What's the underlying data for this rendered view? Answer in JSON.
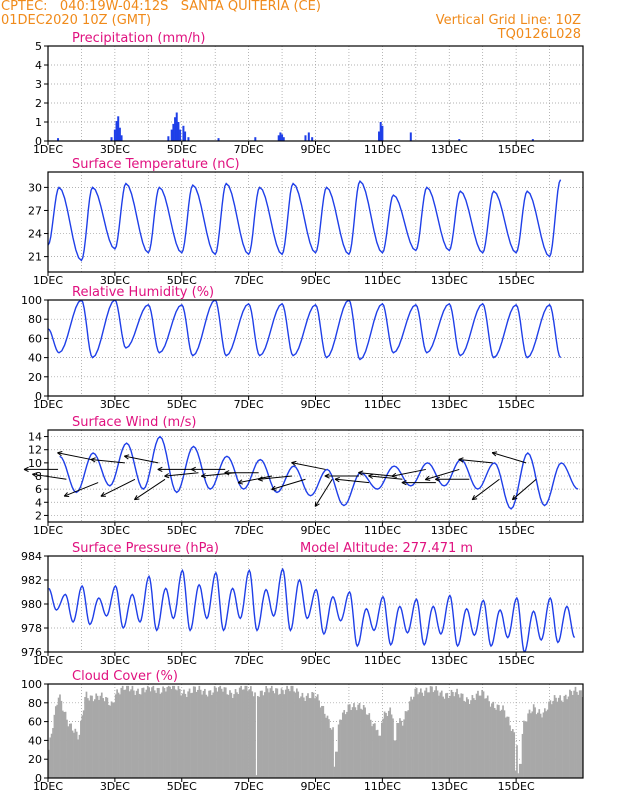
{
  "header": {
    "line1": "CPTEC:   040:19W-04:12S   SANTA QUITERIA (CE)",
    "line2": "01DEC2020 10Z (GMT)",
    "grid_note": "Vertical Grid Line: 10Z",
    "code": "TQ0126L028"
  },
  "colors": {
    "header": "#f08a1a",
    "panel_title": "#e0117f",
    "series": "#1f3fe8",
    "cloud": "#a8a8a8",
    "wind_arrow": "#000000"
  },
  "x_ticks": [
    "1DEC",
    "3DEC",
    "5DEC",
    "7DEC",
    "9DEC",
    "11DEC",
    "13DEC",
    "15DEC"
  ],
  "chart_data": [
    {
      "type": "bar",
      "title": "Precipitation (mm/h)",
      "ylim": [
        0,
        5
      ],
      "yticks": [
        "0",
        "1",
        "2",
        "3",
        "4",
        "5"
      ],
      "points": [
        {
          "x": 0.3,
          "y": 0.15
        },
        {
          "x": 1.9,
          "y": 0.2
        },
        {
          "x": 2.0,
          "y": 0.6
        },
        {
          "x": 2.05,
          "y": 1.05
        },
        {
          "x": 2.1,
          "y": 1.3
        },
        {
          "x": 2.15,
          "y": 0.7
        },
        {
          "x": 2.2,
          "y": 0.3
        },
        {
          "x": 3.6,
          "y": 0.25
        },
        {
          "x": 3.7,
          "y": 0.6
        },
        {
          "x": 3.75,
          "y": 0.9
        },
        {
          "x": 3.8,
          "y": 1.25
        },
        {
          "x": 3.85,
          "y": 1.5
        },
        {
          "x": 3.9,
          "y": 1.0
        },
        {
          "x": 3.95,
          "y": 0.6
        },
        {
          "x": 4.05,
          "y": 0.8
        },
        {
          "x": 4.1,
          "y": 0.5
        },
        {
          "x": 4.2,
          "y": 0.2
        },
        {
          "x": 5.1,
          "y": 0.15
        },
        {
          "x": 6.2,
          "y": 0.2
        },
        {
          "x": 6.9,
          "y": 0.3
        },
        {
          "x": 6.95,
          "y": 0.45
        },
        {
          "x": 7.0,
          "y": 0.35
        },
        {
          "x": 7.05,
          "y": 0.2
        },
        {
          "x": 7.7,
          "y": 0.3
        },
        {
          "x": 7.8,
          "y": 0.45
        },
        {
          "x": 7.9,
          "y": 0.2
        },
        {
          "x": 9.9,
          "y": 0.5
        },
        {
          "x": 9.95,
          "y": 1.0
        },
        {
          "x": 10.0,
          "y": 0.8
        },
        {
          "x": 10.85,
          "y": 0.45
        },
        {
          "x": 12.3,
          "y": 0.1
        },
        {
          "x": 14.5,
          "y": 0.1
        }
      ]
    },
    {
      "type": "line",
      "title": "Surface Temperature (nC)",
      "ylim": [
        19,
        32
      ],
      "yticks": [
        "21",
        "24",
        "27",
        "30"
      ],
      "cycle": {
        "min_offset": 0.0,
        "max_offset": 0.33,
        "period": 1,
        "minima": [
          22.5,
          20.5,
          22.0,
          21.5,
          21.5,
          21.3,
          21.3,
          21.3,
          21.5,
          21.3,
          21.5,
          21.8,
          21.8,
          21.5,
          21.5,
          21.0
        ],
        "maxima": [
          30.0,
          30.0,
          30.5,
          30.0,
          30.3,
          30.5,
          30.0,
          30.5,
          30.0,
          30.8,
          29.0,
          30.0,
          29.5,
          29.5,
          29.5,
          31.0
        ]
      }
    },
    {
      "type": "line",
      "title": "Relative Humidity (%)",
      "ylim": [
        0,
        100
      ],
      "yticks": [
        "0",
        "20",
        "40",
        "60",
        "80",
        "100"
      ],
      "cycle": {
        "min_offset": 0.33,
        "max_offset": 0.0,
        "period": 1,
        "minima": [
          45,
          40,
          50,
          45,
          42,
          42,
          42,
          42,
          40,
          38,
          45,
          45,
          42,
          40,
          40,
          40
        ],
        "maxima": [
          70,
          100,
          100,
          95,
          95,
          100,
          96,
          96,
          95,
          100,
          96,
          95,
          96,
          96,
          95,
          95
        ]
      }
    },
    {
      "type": "line",
      "title": "Surface Wind (m/s)",
      "ylim": [
        1,
        15
      ],
      "yticks": [
        "2",
        "4",
        "6",
        "8",
        "10",
        "12",
        "14"
      ],
      "cycle": {
        "min_offset": 0.85,
        "max_offset": 0.35,
        "period": 1,
        "minima": [
          5.5,
          6.5,
          6.0,
          5.5,
          6.0,
          6.0,
          5.5,
          5.0,
          3.5,
          6.0,
          6.5,
          6.5,
          6.0,
          3.0,
          3.5,
          6.0
        ],
        "maxima": [
          11.0,
          11.5,
          13.0,
          14.0,
          12.5,
          11.0,
          10.5,
          9.5,
          9.0,
          8.5,
          9.5,
          10.0,
          10.5,
          10.0,
          11.5,
          10.0
        ]
      },
      "arrows": [
        {
          "x": 0.3,
          "y": 9.0,
          "u": -1.0,
          "v": 0.0
        },
        {
          "x": 0.55,
          "y": 7.5,
          "u": -1.0,
          "v": 0.15
        },
        {
          "x": 1.3,
          "y": 10.5,
          "u": -1.0,
          "v": 0.2
        },
        {
          "x": 1.5,
          "y": 7.0,
          "u": -1.0,
          "v": -0.4
        },
        {
          "x": 2.3,
          "y": 10.0,
          "u": -1.0,
          "v": 0.1
        },
        {
          "x": 2.6,
          "y": 7.5,
          "u": -1.0,
          "v": -0.5
        },
        {
          "x": 3.3,
          "y": 10.0,
          "u": -1.0,
          "v": 0.2
        },
        {
          "x": 3.5,
          "y": 7.5,
          "u": -0.9,
          "v": -0.6
        },
        {
          "x": 4.3,
          "y": 9.0,
          "u": -1.0,
          "v": 0.0
        },
        {
          "x": 4.5,
          "y": 8.5,
          "u": -1.0,
          "v": -0.1
        },
        {
          "x": 5.3,
          "y": 9.0,
          "u": -1.0,
          "v": 0.0
        },
        {
          "x": 5.6,
          "y": 8.5,
          "u": -1.0,
          "v": -0.1
        },
        {
          "x": 6.3,
          "y": 8.5,
          "u": -1.0,
          "v": 0.0
        },
        {
          "x": 6.7,
          "y": 8.0,
          "u": -1.0,
          "v": -0.2
        },
        {
          "x": 7.3,
          "y": 8.0,
          "u": -1.0,
          "v": -0.1
        },
        {
          "x": 7.7,
          "y": 7.5,
          "u": -1.0,
          "v": -0.3
        },
        {
          "x": 8.3,
          "y": 9.0,
          "u": -1.0,
          "v": 0.2
        },
        {
          "x": 8.5,
          "y": 7.5,
          "u": -0.5,
          "v": -0.8
        },
        {
          "x": 9.3,
          "y": 8.0,
          "u": -1.0,
          "v": 0.0
        },
        {
          "x": 9.6,
          "y": 7.0,
          "u": -1.0,
          "v": 0.1
        },
        {
          "x": 10.3,
          "y": 8.0,
          "u": -1.0,
          "v": 0.1
        },
        {
          "x": 10.6,
          "y": 7.5,
          "u": -1.0,
          "v": 0.1
        },
        {
          "x": 11.3,
          "y": 9.0,
          "u": -1.0,
          "v": -0.2
        },
        {
          "x": 11.6,
          "y": 7.0,
          "u": -1.0,
          "v": 0.0
        },
        {
          "x": 12.3,
          "y": 9.0,
          "u": -1.0,
          "v": -0.3
        },
        {
          "x": 12.6,
          "y": 7.5,
          "u": -1.0,
          "v": 0.0
        },
        {
          "x": 13.3,
          "y": 10.0,
          "u": -1.0,
          "v": 0.1
        },
        {
          "x": 13.5,
          "y": 7.5,
          "u": -0.8,
          "v": -0.6
        },
        {
          "x": 14.3,
          "y": 10.0,
          "u": -1.0,
          "v": 0.3
        },
        {
          "x": 14.6,
          "y": 7.5,
          "u": -0.7,
          "v": -0.6
        }
      ]
    },
    {
      "type": "line",
      "title": "Surface Pressure (hPa)",
      "annotation": "Model Altitude: 277.471 m",
      "ylim": [
        976,
        984
      ],
      "yticks": [
        "976",
        "978",
        "980",
        "982",
        "984"
      ],
      "semidiurnal": {
        "high_offsets": [
          0.02,
          0.52
        ],
        "low_offsets": [
          0.25,
          0.75
        ],
        "highs_a": [
          981.3,
          981.5,
          981.5,
          982.3,
          982.8,
          982.6,
          982.8,
          982.9,
          981.2,
          981.0,
          980.6,
          980.4,
          980.7,
          980.3,
          980.5,
          980.5
        ],
        "highs_b": [
          980.8,
          980.5,
          980.8,
          981.3,
          981.6,
          981.3,
          981.2,
          982.0,
          980.6,
          979.6,
          979.8,
          979.8,
          979.6,
          979.5,
          979.4,
          979.8
        ],
        "lows_a": [
          979.5,
          978.3,
          978.0,
          977.8,
          977.8,
          977.8,
          977.8,
          977.8,
          977.5,
          976.5,
          976.6,
          976.6,
          976.5,
          976.5,
          976.0,
          976.8
        ],
        "lows_b": [
          978.5,
          979.0,
          978.5,
          978.8,
          978.8,
          978.8,
          979.0,
          978.8,
          978.6,
          977.8,
          977.6,
          977.5,
          977.4,
          977.2,
          977.0,
          977.2
        ]
      }
    },
    {
      "type": "area",
      "title": "Cloud Cover (%)",
      "ylim": [
        0,
        100
      ],
      "yticks": [
        "0",
        "20",
        "40",
        "60",
        "80",
        "100"
      ],
      "profile": [
        {
          "x": 0.0,
          "y": 30
        },
        {
          "x": 0.3,
          "y": 88
        },
        {
          "x": 0.6,
          "y": 60
        },
        {
          "x": 0.9,
          "y": 40
        },
        {
          "x": 1.1,
          "y": 90
        },
        {
          "x": 1.5,
          "y": 85
        },
        {
          "x": 1.9,
          "y": 80
        },
        {
          "x": 2.0,
          "y": 92
        },
        {
          "x": 2.5,
          "y": 95
        },
        {
          "x": 3.0,
          "y": 93
        },
        {
          "x": 3.5,
          "y": 97
        },
        {
          "x": 4.0,
          "y": 93
        },
        {
          "x": 4.5,
          "y": 92
        },
        {
          "x": 5.0,
          "y": 94
        },
        {
          "x": 5.5,
          "y": 92
        },
        {
          "x": 6.0,
          "y": 95
        },
        {
          "x": 6.4,
          "y": 90
        },
        {
          "x": 6.8,
          "y": 95
        },
        {
          "x": 7.3,
          "y": 93
        },
        {
          "x": 7.7,
          "y": 88
        },
        {
          "x": 8.0,
          "y": 85
        },
        {
          "x": 8.3,
          "y": 70
        },
        {
          "x": 8.5,
          "y": 50
        },
        {
          "x": 8.6,
          "y": 30
        },
        {
          "x": 8.7,
          "y": 60
        },
        {
          "x": 9.0,
          "y": 80
        },
        {
          "x": 9.5,
          "y": 70
        },
        {
          "x": 9.8,
          "y": 55
        },
        {
          "x": 10.2,
          "y": 70
        },
        {
          "x": 10.6,
          "y": 60
        },
        {
          "x": 11.0,
          "y": 95
        },
        {
          "x": 11.5,
          "y": 92
        },
        {
          "x": 12.0,
          "y": 90
        },
        {
          "x": 12.5,
          "y": 85
        },
        {
          "x": 13.0,
          "y": 88
        },
        {
          "x": 13.3,
          "y": 80
        },
        {
          "x": 13.6,
          "y": 70
        },
        {
          "x": 13.9,
          "y": 50
        },
        {
          "x": 14.1,
          "y": 30
        },
        {
          "x": 14.2,
          "y": 55
        },
        {
          "x": 14.5,
          "y": 75
        },
        {
          "x": 14.8,
          "y": 70
        },
        {
          "x": 15.2,
          "y": 85
        },
        {
          "x": 15.6,
          "y": 90
        },
        {
          "x": 16.0,
          "y": 90
        }
      ],
      "dips": [
        {
          "x": 6.2,
          "y": 3
        },
        {
          "x": 8.55,
          "y": 12
        },
        {
          "x": 8.6,
          "y": 28
        },
        {
          "x": 13.95,
          "y": 8
        },
        {
          "x": 14.05,
          "y": 5
        },
        {
          "x": 14.1,
          "y": 15
        },
        {
          "x": 9.9,
          "y": 45
        },
        {
          "x": 10.35,
          "y": 40
        }
      ]
    }
  ]
}
